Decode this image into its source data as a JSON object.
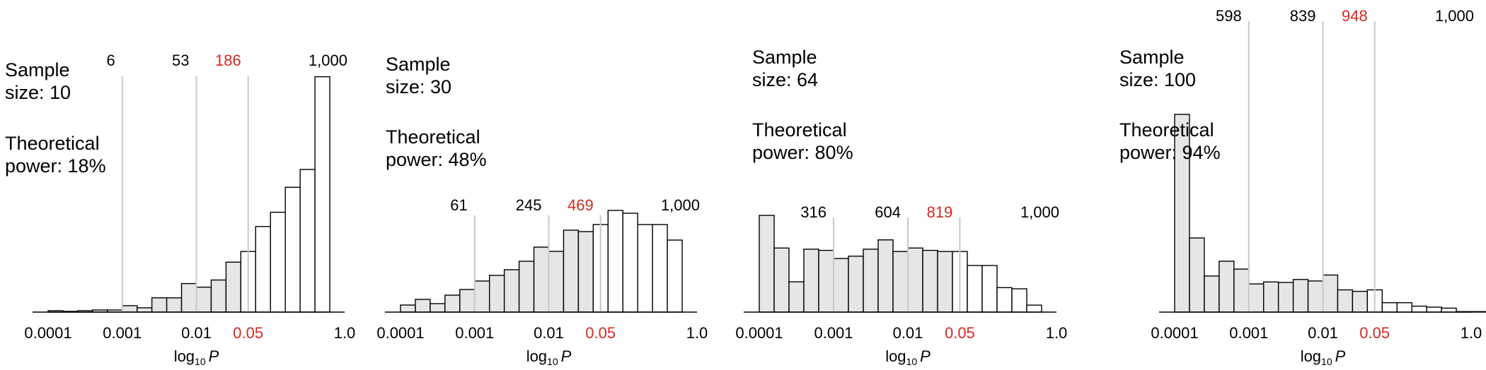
{
  "figure": {
    "x_label_main": "log",
    "x_label_sub": "10",
    "x_label_var": "P",
    "colors": {
      "highlight": "#d52a20",
      "bar_filled": "#e6e6e6",
      "bar_empty": "#ffffff",
      "outline": "#000000",
      "vline": "#c8c8c8"
    }
  },
  "chart_data": [
    {
      "type": "bar",
      "panel": "sample-size-10",
      "title_line1": "Sample",
      "title_line2": "size: 10",
      "power_line1": "Theoretical",
      "power_line2": "power: 18%",
      "x_scale": "log10",
      "xlim": [
        0.0001,
        1.0
      ],
      "x_ticks": [
        0.0001,
        0.001,
        0.01,
        0.05,
        1.0
      ],
      "x_tick_labels": [
        "0.0001",
        "0.001",
        "0.01",
        "0.05",
        "1.0"
      ],
      "highlight_tick": "0.05",
      "cumulative_markers": [
        {
          "p": 0.001,
          "label": "6"
        },
        {
          "p": 0.01,
          "label": "53"
        },
        {
          "p": 0.05,
          "label": "186",
          "highlight": true
        },
        {
          "p": 1.0,
          "label": "1,000"
        }
      ],
      "bar_width_log10": 0.2,
      "values": [
        2,
        1,
        2,
        3,
        3,
        9,
        6,
        20,
        20,
        40,
        35,
        45,
        70,
        85,
        120,
        140,
        175,
        200,
        330
      ],
      "filled_below_p": 0.05
    },
    {
      "type": "bar",
      "panel": "sample-size-30",
      "title_line1": "Sample",
      "title_line2": "size: 30",
      "power_line1": "Theoretical",
      "power_line2": "power: 48%",
      "x_scale": "log10",
      "xlim": [
        0.0001,
        1.0
      ],
      "x_ticks": [
        0.0001,
        0.001,
        0.01,
        0.05,
        1.0
      ],
      "x_tick_labels": [
        "0.0001",
        "0.001",
        "0.01",
        "0.05",
        "1.0"
      ],
      "highlight_tick": "0.05",
      "cumulative_markers": [
        {
          "p": 0.001,
          "label": "61"
        },
        {
          "p": 0.01,
          "label": "245"
        },
        {
          "p": 0.05,
          "label": "469",
          "highlight": true
        },
        {
          "p": 1.0,
          "label": "1,000"
        }
      ],
      "bar_width_log10": 0.2,
      "values": [
        5,
        9,
        6,
        12,
        16,
        22,
        26,
        30,
        36,
        46,
        43,
        58,
        57,
        62,
        72,
        70,
        62,
        62,
        51
      ],
      "filled_below_p": 0.05
    },
    {
      "type": "bar",
      "panel": "sample-size-64",
      "title_line1": "Sample",
      "title_line2": "size: 64",
      "power_line1": "Theoretical",
      "power_line2": "power: 80%",
      "x_scale": "log10",
      "xlim": [
        0.0001,
        1.0
      ],
      "x_ticks": [
        0.0001,
        0.001,
        0.01,
        0.05,
        1.0
      ],
      "x_tick_labels": [
        "0.0001",
        "0.001",
        "0.01",
        "0.05",
        "1.0"
      ],
      "highlight_tick": "0.05",
      "cumulative_markers": [
        {
          "p": 0.001,
          "label": "316"
        },
        {
          "p": 0.01,
          "label": "604"
        },
        {
          "p": 0.05,
          "label": "819",
          "highlight": true
        },
        {
          "p": 1.0,
          "label": "1,000"
        }
      ],
      "bar_width_log10": 0.2,
      "values": [
        83,
        55,
        26,
        54,
        53,
        46,
        48,
        54,
        62,
        52,
        55,
        53,
        52,
        52,
        40,
        40,
        21,
        20,
        6
      ],
      "filled_below_p": 0.05
    },
    {
      "type": "bar",
      "panel": "sample-size-100",
      "title_line1": "Sample",
      "title_line2": "size: 100",
      "power_line1": "Theoretical",
      "power_line2": "power: 94%",
      "x_scale": "log10",
      "xlim": [
        0.0001,
        1.0
      ],
      "x_ticks": [
        0.0001,
        0.001,
        0.01,
        0.05,
        1.0
      ],
      "x_tick_labels": [
        "0.0001",
        "0.001",
        "0.01",
        "0.05",
        "1.0"
      ],
      "highlight_tick": "0.05",
      "cumulative_markers": [
        {
          "p": 0.001,
          "label": "598"
        },
        {
          "p": 0.01,
          "label": "839"
        },
        {
          "p": 0.05,
          "label": "948",
          "highlight": true
        },
        {
          "p": 1.0,
          "label": "1,000"
        }
      ],
      "bar_width_log10": 0.2,
      "values": [
        400,
        150,
        73,
        103,
        87,
        57,
        61,
        60,
        66,
        63,
        75,
        45,
        42,
        45,
        19,
        19,
        12,
        10,
        8,
        1,
        1
      ],
      "filled_below_p": 0.05
    }
  ]
}
